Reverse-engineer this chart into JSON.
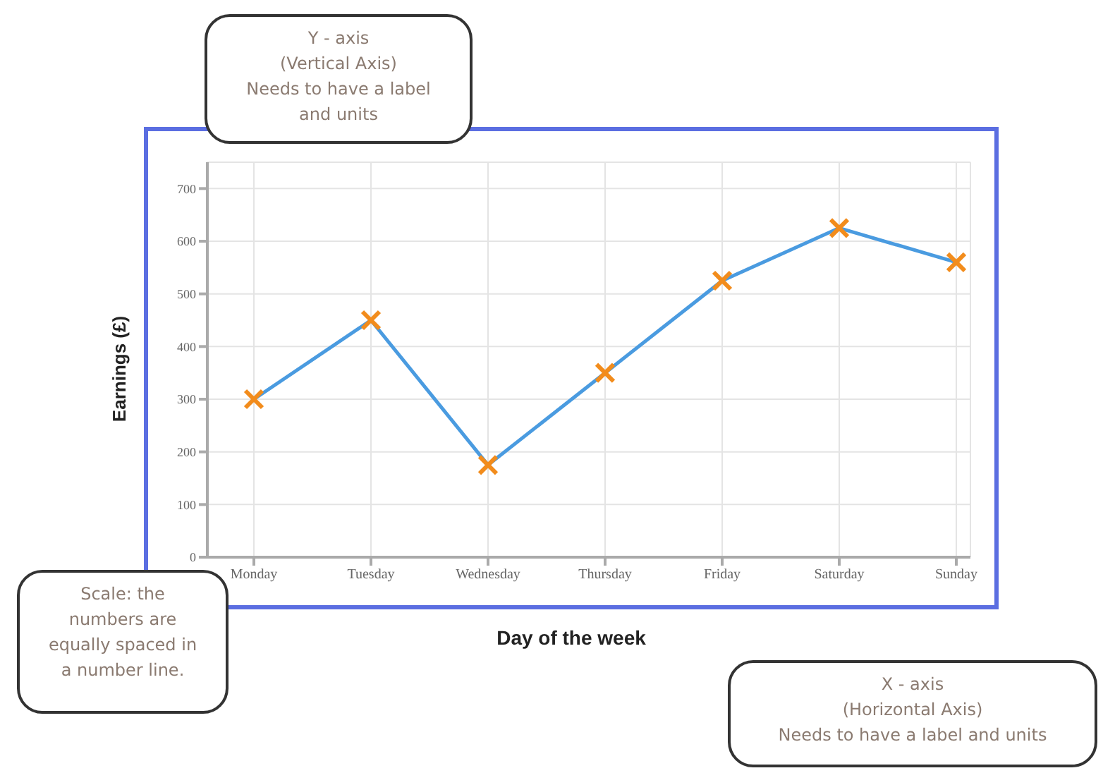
{
  "chart_data": {
    "type": "line",
    "xlabel": "Day of the week",
    "ylabel": "Earnings (£)",
    "categories": [
      "Monday",
      "Tuesday",
      "Wednesday",
      "Thursday",
      "Friday",
      "Saturday",
      "Sunday"
    ],
    "series": [
      {
        "color": "#4a9be0",
        "colors": [
          "#f28c1c",
          "#f28c1c",
          "#f28c1c",
          "#f28c1c",
          "#f28c1c",
          "#f28c1c",
          "#f28c1c"
        ],
        "values": [
          300,
          450,
          175,
          350,
          525,
          625,
          560
        ]
      }
    ],
    "ylim": [
      0,
      750
    ],
    "yticks": [
      0,
      100,
      200,
      300,
      400,
      500,
      600,
      700
    ],
    "grid": true,
    "marker": "cross",
    "legend": false,
    "annotations": [
      "Y - axis\n(Vertical Axis)\nNeeds to have a label\nand units",
      "Scale: the\nnumbers are\nequally spaced in\na number line.",
      "X - axis\n(Horizontal Axis)\nNeeds to have a label and units"
    ]
  }
}
